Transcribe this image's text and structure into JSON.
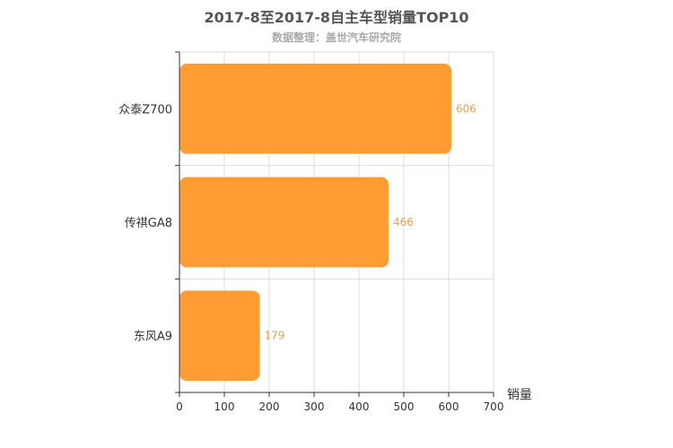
{
  "chart_data": {
    "type": "bar",
    "orientation": "horizontal",
    "title": "2017-8至2017-8自主车型销量TOP10",
    "subtitle": "数据整理：盖世汽车研究院",
    "categories": [
      "众泰Z700",
      "传祺GA8",
      "东风A9"
    ],
    "values": [
      606,
      466,
      179
    ],
    "xlabel": "销量",
    "ylabel": "",
    "xlim": [
      0,
      700
    ],
    "xticks": [
      0,
      100,
      200,
      300,
      400,
      500,
      600,
      700
    ],
    "grid": true,
    "bar_color": "#ff9c34",
    "value_label_color": "#e8a04a"
  }
}
